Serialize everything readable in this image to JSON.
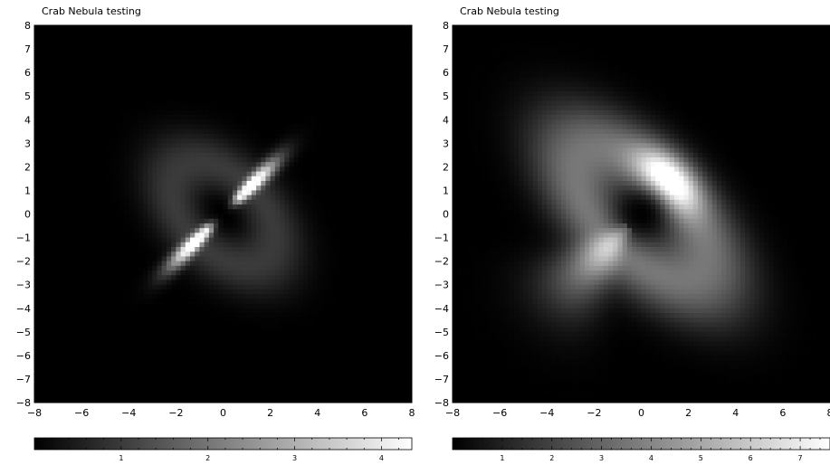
{
  "chart_data": [
    {
      "type": "heatmap",
      "title": "Crab Nebula testing",
      "xlabel": "",
      "ylabel": "",
      "xlim": [
        -8,
        8
      ],
      "ylim": [
        -8,
        8
      ],
      "x_ticks": [
        -8,
        -6,
        -4,
        -2,
        0,
        2,
        4,
        6,
        8
      ],
      "y_ticks": [
        8,
        7,
        6,
        5,
        4,
        3,
        2,
        1,
        0,
        -1,
        -2,
        -3,
        -4,
        -5,
        -6,
        -7,
        -8
      ],
      "colormap": "grayscale",
      "colorbar": {
        "range": [
          0,
          4.35
        ],
        "ticks": [
          1,
          2,
          3,
          4
        ]
      },
      "features": {
        "torus_peak": 1.0,
        "jet_peak": 4.35,
        "jet_direction": "symmetric two-sided jet along the torus axis"
      }
    },
    {
      "type": "heatmap",
      "title": "Crab Nebula testing",
      "xlabel": "",
      "ylabel": "",
      "xlim": [
        -8,
        8
      ],
      "ylim": [
        -8,
        8
      ],
      "x_ticks": [
        -8,
        -6,
        -4,
        -2,
        0,
        2,
        4,
        6,
        8
      ],
      "y_ticks": [
        8,
        7,
        6,
        5,
        4,
        3,
        2,
        1,
        0,
        -1,
        -2,
        -3,
        -4,
        -5,
        -6,
        -7,
        -8
      ],
      "colormap": "grayscale",
      "colorbar": {
        "range": [
          0,
          7.6
        ],
        "ticks": [
          1,
          2,
          3,
          4,
          5,
          6,
          7
        ]
      },
      "features": {
        "torus_peak": 7.6,
        "jet_peak": 3.5,
        "jet_direction": "one-sided jet toward lower-left, faint counter-jet"
      }
    }
  ],
  "colors": {
    "background": "#ffffff",
    "axes": "#000000"
  }
}
